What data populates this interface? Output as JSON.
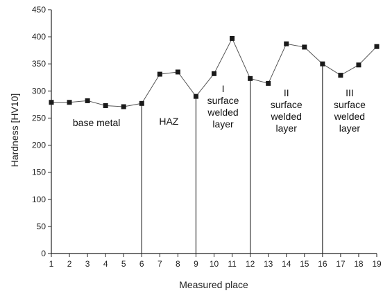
{
  "chart_data": {
    "type": "line",
    "title": "",
    "xlabel": "Measured place",
    "ylabel": "Hardness [HV10]",
    "xlim": [
      1,
      19
    ],
    "ylim": [
      0,
      450
    ],
    "x_ticks": [
      1,
      2,
      3,
      4,
      5,
      6,
      7,
      8,
      9,
      10,
      11,
      12,
      13,
      14,
      15,
      16,
      17,
      18,
      19
    ],
    "y_ticks": [
      0,
      50,
      100,
      150,
      200,
      250,
      300,
      350,
      400,
      450
    ],
    "x": [
      1,
      2,
      3,
      4,
      5,
      6,
      7,
      8,
      9,
      10,
      11,
      12,
      13,
      14,
      15,
      16,
      17,
      18,
      19
    ],
    "series": [
      {
        "values": [
          279,
          279,
          282,
          273,
          271,
          277,
          331,
          335,
          290,
          332,
          397,
          323,
          314,
          387,
          381,
          350,
          329,
          348,
          382
        ]
      }
    ],
    "boundaries": [
      6,
      9,
      12,
      16
    ],
    "regions": [
      {
        "lines": [
          "base metal"
        ],
        "x_center": 3.5,
        "y": 235
      },
      {
        "lines": [
          "HAZ"
        ],
        "x_center": 7.5,
        "y": 238
      },
      {
        "lines": [
          "I",
          "surface",
          "welded",
          "layer"
        ],
        "x_center": 10.5,
        "y": 298
      },
      {
        "lines": [
          "II",
          "surface",
          "welded",
          "layer"
        ],
        "x_center": 14.0,
        "y": 290
      },
      {
        "lines": [
          "III",
          "surface",
          "welded",
          "layer"
        ],
        "x_center": 17.5,
        "y": 290
      }
    ],
    "grid": false,
    "marker": "square",
    "color": "#1a1a1a"
  }
}
